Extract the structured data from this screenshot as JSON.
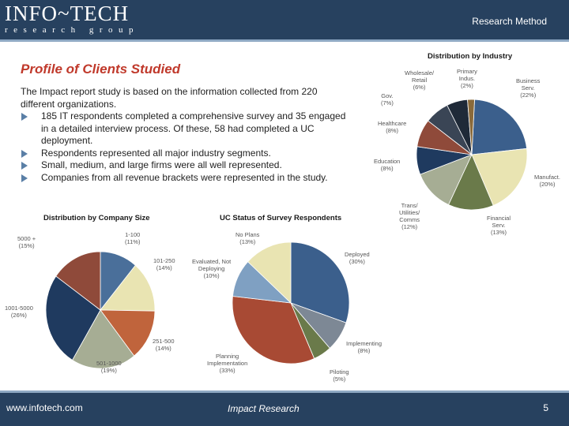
{
  "header": {
    "logo_main": "INFO~TECH",
    "logo_sub": "research group",
    "section": "Research Method"
  },
  "title": "Profile of Clients Studied",
  "intro": "The Impact report study is based on the information collected from 220 different organizations.",
  "bullets": [
    "185 IT respondents completed a comprehensive survey and 35 engaged in a detailed interview process. Of these, 58 had completed a UC deployment.",
    "Respondents represented all major industry segments.",
    "Small, medium, and large firms were all well represented.",
    "Companies from all revenue brackets were represented in the study."
  ],
  "footer": {
    "website": "www.infotech.com",
    "center": "Impact Research",
    "page": "5"
  },
  "chart_data": [
    {
      "type": "pie",
      "title": "Distribution by Industry",
      "slices": [
        {
          "label": "Business Serv.",
          "value": 22,
          "color": "#3b5f8c"
        },
        {
          "label": "Manufact.",
          "value": 20,
          "color": "#e9e4b2"
        },
        {
          "label": "Financial Serv.",
          "value": 13,
          "color": "#6a7a4a"
        },
        {
          "label": "Trans/ Utilities/ Comms",
          "value": 12,
          "color": "#a6ad94"
        },
        {
          "label": "Education",
          "value": 8,
          "color": "#1f3a5f"
        },
        {
          "label": "Healthcare",
          "value": 8,
          "color": "#8f4a3a"
        },
        {
          "label": "Gov.",
          "value": 7,
          "color": "#3a4555"
        },
        {
          "label": "Wholesale/ Retail",
          "value": 6,
          "color": "#1f2a38"
        },
        {
          "label": "Primary Indus.",
          "value": 2,
          "color": "#8a6a3a"
        }
      ]
    },
    {
      "type": "pie",
      "title": "Distribution by Company Size",
      "slices": [
        {
          "label": "1-100",
          "value": 11,
          "color": "#4a6f9a"
        },
        {
          "label": "101-250",
          "value": 14,
          "color": "#e9e4b2"
        },
        {
          "label": "251-500",
          "value": 14,
          "color": "#c0643c"
        },
        {
          "label": "501-1000",
          "value": 19,
          "color": "#a6ad94"
        },
        {
          "label": "1001-5000",
          "value": 26,
          "color": "#1f3a5f"
        },
        {
          "label": "5000 +",
          "value": 15,
          "color": "#8f4a3a"
        }
      ]
    },
    {
      "type": "pie",
      "title": "UC Status of Survey Respondents",
      "slices": [
        {
          "label": "Deployed",
          "value": 30,
          "color": "#3b5f8c"
        },
        {
          "label": "Implementing",
          "value": 8,
          "color": "#7d8895"
        },
        {
          "label": "Piloting",
          "value": 5,
          "color": "#6a7a4a"
        },
        {
          "label": "Planning Implementation",
          "value": 33,
          "color": "#a84a34"
        },
        {
          "label": "Evaluated, Not Deploying",
          "value": 10,
          "color": "#7fa0c2"
        },
        {
          "label": "No Plans",
          "value": 13,
          "color": "#e9e4b2"
        }
      ]
    }
  ],
  "pie_labels": {
    "industry": [
      {
        "lines": [
          "Wholesale/",
          "Retail",
          "(6%)"
        ]
      },
      {
        "lines": [
          "Primary",
          "Indus.",
          "(2%)"
        ]
      },
      {
        "lines": [
          "Business",
          "Serv.",
          "(22%)"
        ]
      },
      {
        "lines": [
          "Gov.",
          "(7%)"
        ]
      },
      {
        "lines": [
          "Healthcare",
          "(8%)"
        ]
      },
      {
        "lines": [
          "Education",
          "(8%)"
        ]
      },
      {
        "lines": [
          "Manufact.",
          "(20%)"
        ]
      },
      {
        "lines": [
          "Trans/",
          "Utilities/",
          "Comms",
          "(12%)"
        ]
      },
      {
        "lines": [
          "Financial",
          "Serv.",
          "(13%)"
        ]
      }
    ],
    "size": [
      {
        "lines": [
          "5000 +",
          "(15%)"
        ]
      },
      {
        "lines": [
          "1-100",
          "(11%)"
        ]
      },
      {
        "lines": [
          "101-250",
          "(14%)"
        ]
      },
      {
        "lines": [
          "1001-5000",
          "(26%)"
        ]
      },
      {
        "lines": [
          "251-500",
          "(14%)"
        ]
      },
      {
        "lines": [
          "501-1000",
          "(19%)"
        ]
      }
    ],
    "status": [
      {
        "lines": [
          "No Plans",
          "(13%)"
        ]
      },
      {
        "lines": [
          "Evaluated, Not",
          "Deploying",
          "(10%)"
        ]
      },
      {
        "lines": [
          "Deployed",
          "(30%)"
        ]
      },
      {
        "lines": [
          "Implementing",
          "(8%)"
        ]
      },
      {
        "lines": [
          "Planning",
          "Implementation",
          "(33%)"
        ]
      },
      {
        "lines": [
          "Piloting",
          "(5%)"
        ]
      }
    ]
  }
}
